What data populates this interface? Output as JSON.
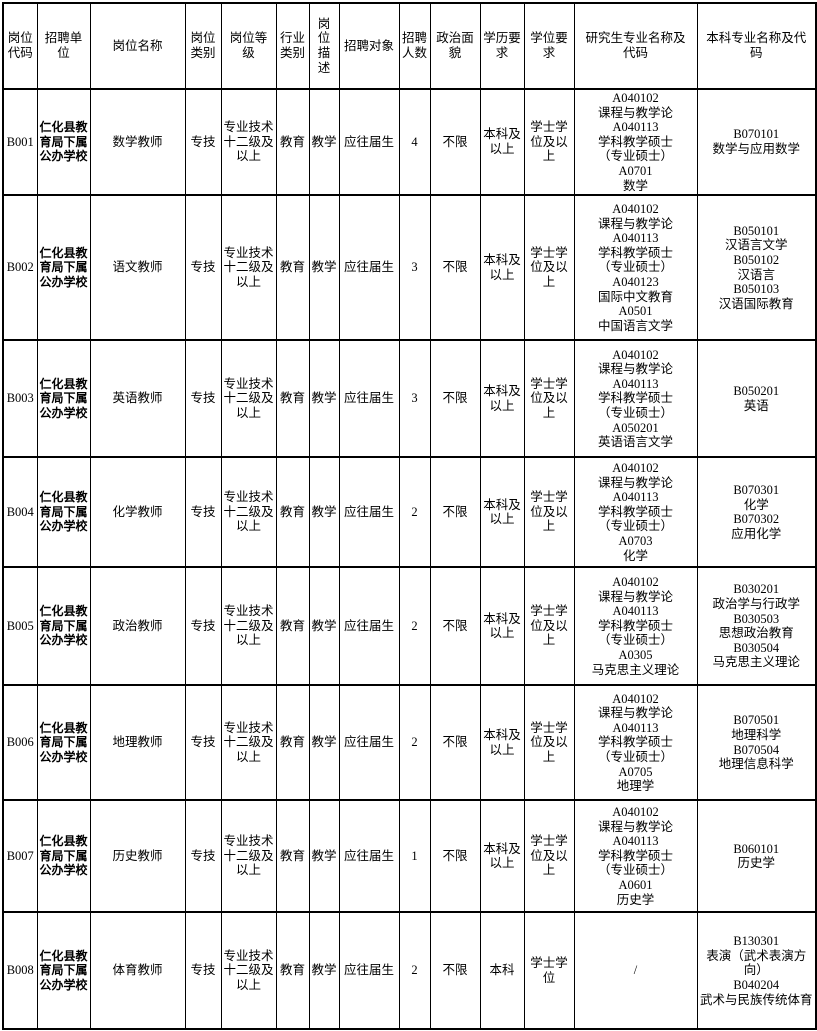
{
  "table": {
    "headers": [
      "岗位\n代码",
      "招聘单\n位",
      "岗位名称",
      "岗位\n类别",
      "岗位等\n级",
      "行业\n类别",
      "岗\n位\n描\n述",
      "招聘对象",
      "招聘\n人数",
      "政治面\n貌",
      "学历要\n求",
      "学位要\n求",
      "研究生专业名称及\n代码",
      "本科专业名称及代\n码"
    ],
    "rows": [
      {
        "code": "B001",
        "unit": "仁化县教\n育局下属\n公办学校",
        "name": "数学教师",
        "category": "专技",
        "grade": "专业技术\n十二级及\n以上",
        "industry": "教育",
        "duty": "教学",
        "target": "应往届生",
        "count": "4",
        "political": "不限",
        "education": "本科及\n以上",
        "degree": "学士学\n位及以\n上",
        "grad_majors": "A040102\n课程与教学论\nA040113\n学科教学硕士\n（专业硕士）\nA0701\n数学",
        "undergrad_majors": "B070101\n数学与应用数学"
      },
      {
        "code": "B002",
        "unit": "仁化县教\n育局下属\n公办学校",
        "name": "语文教师",
        "category": "专技",
        "grade": "专业技术\n十二级及\n以上",
        "industry": "教育",
        "duty": "教学",
        "target": "应往届生",
        "count": "3",
        "political": "不限",
        "education": "本科及\n以上",
        "degree": "学士学\n位及以\n上",
        "grad_majors": "A040102\n课程与教学论\nA040113\n学科教学硕士\n（专业硕士）\nA040123\n国际中文教育\nA0501\n中国语言文学",
        "undergrad_majors": "B050101\n汉语言文学\nB050102\n汉语言\nB050103\n汉语国际教育"
      },
      {
        "code": "B003",
        "unit": "仁化县教\n育局下属\n公办学校",
        "name": "英语教师",
        "category": "专技",
        "grade": "专业技术\n十二级及\n以上",
        "industry": "教育",
        "duty": "教学",
        "target": "应往届生",
        "count": "3",
        "political": "不限",
        "education": "本科及\n以上",
        "degree": "学士学\n位及以\n上",
        "grad_majors": "A040102\n课程与教学论\nA040113\n学科教学硕士\n（专业硕士）\nA050201\n英语语言文学",
        "undergrad_majors": "B050201\n英语"
      },
      {
        "code": "B004",
        "unit": "仁化县教\n育局下属\n公办学校",
        "name": "化学教师",
        "category": "专技",
        "grade": "专业技术\n十二级及\n以上",
        "industry": "教育",
        "duty": "教学",
        "target": "应往届生",
        "count": "2",
        "political": "不限",
        "education": "本科及\n以上",
        "degree": "学士学\n位及以\n上",
        "grad_majors": "A040102\n课程与教学论\nA040113\n学科教学硕士\n（专业硕士）\nA0703\n化学",
        "undergrad_majors": "B070301\n化学\nB070302\n应用化学"
      },
      {
        "code": "B005",
        "unit": "仁化县教\n育局下属\n公办学校",
        "name": "政治教师",
        "category": "专技",
        "grade": "专业技术\n十二级及\n以上",
        "industry": "教育",
        "duty": "教学",
        "target": "应往届生",
        "count": "2",
        "political": "不限",
        "education": "本科及\n以上",
        "degree": "学士学\n位及以\n上",
        "grad_majors": "A040102\n课程与教学论\nA040113\n学科教学硕士\n（专业硕士）\nA0305\n马克思主义理论",
        "undergrad_majors": "B030201\n政治学与行政学\nB030503\n思想政治教育\nB030504\n马克思主义理论"
      },
      {
        "code": "B006",
        "unit": "仁化县教\n育局下属\n公办学校",
        "name": "地理教师",
        "category": "专技",
        "grade": "专业技术\n十二级及\n以上",
        "industry": "教育",
        "duty": "教学",
        "target": "应往届生",
        "count": "2",
        "political": "不限",
        "education": "本科及\n以上",
        "degree": "学士学\n位及以\n上",
        "grad_majors": "A040102\n课程与教学论\nA040113\n学科教学硕士\n（专业硕士）\nA0705\n地理学",
        "undergrad_majors": "B070501\n地理科学\nB070504\n地理信息科学"
      },
      {
        "code": "B007",
        "unit": "仁化县教\n育局下属\n公办学校",
        "name": "历史教师",
        "category": "专技",
        "grade": "专业技术\n十二级及\n以上",
        "industry": "教育",
        "duty": "教学",
        "target": "应往届生",
        "count": "1",
        "political": "不限",
        "education": "本科及\n以上",
        "degree": "学士学\n位及以\n上",
        "grad_majors": "A040102\n课程与教学论\nA040113\n学科教学硕士\n（专业硕士）\nA0601\n历史学",
        "undergrad_majors": "B060101\n历史学"
      },
      {
        "code": "B008",
        "unit": "仁化县教\n育局下属\n公办学校",
        "name": "体育教师",
        "category": "专技",
        "grade": "专业技术\n十二级及\n以上",
        "industry": "教育",
        "duty": "教学",
        "target": "应往届生",
        "count": "2",
        "political": "不限",
        "education": "本科",
        "degree": "学士学\n位",
        "grad_majors": "/",
        "undergrad_majors": "B130301\n表演（武术表演方\n向）\nB040204\n武术与民族传统体育"
      }
    ]
  },
  "colors": {
    "border": "#000000",
    "text": "#000000",
    "background": "#ffffff"
  }
}
